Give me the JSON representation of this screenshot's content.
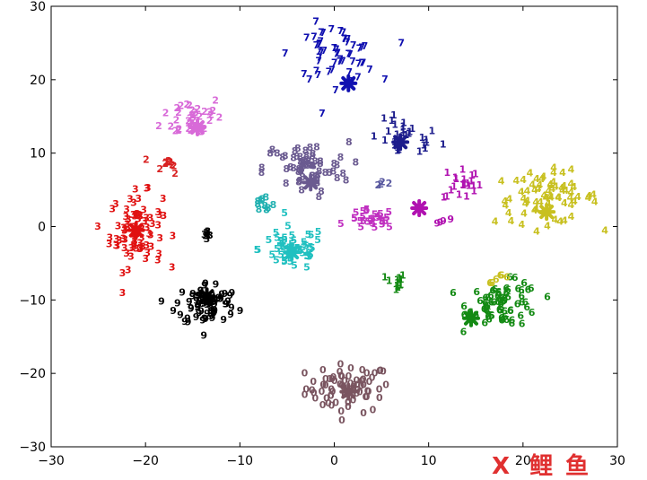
{
  "chart_data": {
    "type": "scatter",
    "title": "",
    "xlabel": "",
    "ylabel": "",
    "xlim": [
      -30,
      30
    ],
    "ylim": [
      -30,
      30
    ],
    "xticks": [
      -30,
      -20,
      -10,
      0,
      10,
      20,
      30
    ],
    "yticks": [
      -30,
      -20,
      -10,
      0,
      10,
      20,
      30
    ],
    "grid": false,
    "legend": "none",
    "clusters": [
      {
        "label": "0",
        "color": "#7a5560",
        "center": [
          1.5,
          -22.5
        ],
        "spread": [
          4.5,
          3.3
        ],
        "count": 70
      },
      {
        "label": "1",
        "color": "#1c1c8c",
        "center": [
          7.5,
          11.5
        ],
        "spread": [
          3.8,
          2.6
        ],
        "count": 30
      },
      {
        "label": "1",
        "color": "#b011b0",
        "center": [
          13.5,
          5.5
        ],
        "spread": [
          2.0,
          2.6
        ],
        "count": 22
      },
      {
        "label": "1",
        "color": "#138a13",
        "center": [
          6.5,
          -8.0
        ],
        "spread": [
          1.0,
          1.2
        ],
        "count": 12
      },
      {
        "label": "2",
        "color": "#d86ad8",
        "center": [
          -15.0,
          14.5
        ],
        "spread": [
          3.3,
          3.0
        ],
        "count": 38
      },
      {
        "label": "2",
        "color": "#d82020",
        "center": [
          -17.5,
          8.0
        ],
        "spread": [
          1.4,
          1.2
        ],
        "count": 10
      },
      {
        "label": "2",
        "color": "#5a5aa0",
        "center": [
          5.0,
          5.5
        ],
        "spread": [
          0.7,
          0.3
        ],
        "count": 4
      },
      {
        "label": "3",
        "color": "#e01010",
        "center": [
          -21.0,
          -1.0
        ],
        "spread": [
          2.8,
          5.0
        ],
        "count": 80
      },
      {
        "label": "3",
        "color": "#000000",
        "center": [
          -13.5,
          -1.5
        ],
        "spread": [
          0.5,
          1.0
        ],
        "count": 8
      },
      {
        "label": "4",
        "color": "#c8c020",
        "center": [
          22.5,
          3.5
        ],
        "spread": [
          5.5,
          3.5
        ],
        "count": 70
      },
      {
        "label": "5",
        "color": "#20c0c0",
        "center": [
          -4.5,
          -3.5
        ],
        "spread": [
          3.5,
          3.0
        ],
        "count": 55
      },
      {
        "label": "5",
        "color": "#c030c0",
        "center": [
          4.0,
          0.5
        ],
        "spread": [
          2.5,
          1.3
        ],
        "count": 28
      },
      {
        "label": "6",
        "color": "#138a13",
        "center": [
          18.0,
          -11.0
        ],
        "spread": [
          3.8,
          3.0
        ],
        "count": 70
      },
      {
        "label": "6",
        "color": "#c8c020",
        "center": [
          17.5,
          -7.5
        ],
        "spread": [
          1.2,
          0.6
        ],
        "count": 6
      },
      {
        "label": "7",
        "color": "#1010b0",
        "center": [
          0.0,
          23.0
        ],
        "spread": [
          4.5,
          4.0
        ],
        "count": 55
      },
      {
        "label": "8",
        "color": "#6a5a90",
        "center": [
          -3.0,
          7.5
        ],
        "spread": [
          4.5,
          3.5
        ],
        "count": 65
      },
      {
        "label": "8",
        "color": "#20b0b0",
        "center": [
          -7.5,
          2.5
        ],
        "spread": [
          1.2,
          1.6
        ],
        "count": 10
      },
      {
        "label": "9",
        "color": "#000000",
        "center": [
          -13.5,
          -11.0
        ],
        "spread": [
          3.3,
          3.0
        ],
        "count": 70
      },
      {
        "label": "9",
        "color": "#b011b0",
        "center": [
          11.5,
          0.5
        ],
        "spread": [
          0.7,
          0.6
        ],
        "count": 4
      }
    ],
    "center_markers": [
      {
        "color": "#7a5560",
        "x": 1.5,
        "y": -22.5
      },
      {
        "color": "#1c1c8c",
        "x": 7.0,
        "y": 11.5
      },
      {
        "color": "#b011b0",
        "x": 9.0,
        "y": 2.5
      },
      {
        "color": "#d86ad8",
        "x": -14.5,
        "y": 13.5
      },
      {
        "color": "#e01010",
        "x": -21.0,
        "y": -0.5
      },
      {
        "color": "#c8c020",
        "x": 22.5,
        "y": 2.0
      },
      {
        "color": "#20c0c0",
        "x": -4.5,
        "y": -3.5
      },
      {
        "color": "#138a13",
        "x": 14.5,
        "y": -12.5
      },
      {
        "color": "#1010b0",
        "x": 1.5,
        "y": 19.5
      },
      {
        "color": "#6a5a90",
        "x": -2.5,
        "y": 6.0
      },
      {
        "color": "#000000",
        "x": -13.5,
        "y": -9.5
      }
    ]
  },
  "watermark": {
    "symbol": "Ⅹ",
    "text": "鲤",
    "text2": "鱼",
    "color_symbol": "#e03030",
    "color_text": "#e03030"
  }
}
